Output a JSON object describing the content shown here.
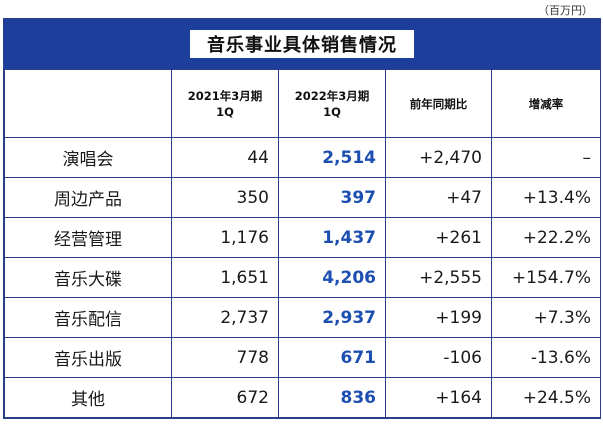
{
  "unit": "（百万円）",
  "title": "音乐事业具体销售情况",
  "headers": {
    "category": "",
    "col1_line1": "2021年3月期",
    "col1_line2": "1Q",
    "col2_line1": "2022年3月期",
    "col2_line2": "1Q",
    "col3": "前年同期比",
    "col4": "增减率"
  },
  "rows": [
    {
      "category": "演唱会",
      "fy2021": "44",
      "fy2022": "2,514",
      "yoy": "+2,470",
      "rate": "–"
    },
    {
      "category": "周边产品",
      "fy2021": "350",
      "fy2022": "397",
      "yoy": "+47",
      "rate": "+13.4%"
    },
    {
      "category": "经营管理",
      "fy2021": "1,176",
      "fy2022": "1,437",
      "yoy": "+261",
      "rate": "+22.2%"
    },
    {
      "category": "音乐大碟",
      "fy2021": "1,651",
      "fy2022": "4,206",
      "yoy": "+2,555",
      "rate": "+154.7%"
    },
    {
      "category": "音乐配信",
      "fy2021": "2,737",
      "fy2022": "2,937",
      "yoy": "+199",
      "rate": "+7.3%"
    },
    {
      "category": "音乐出版",
      "fy2021": "778",
      "fy2022": "671",
      "yoy": "-106",
      "rate": "-13.6%"
    },
    {
      "category": "其他",
      "fy2021": "672",
      "fy2022": "836",
      "yoy": "+164",
      "rate": "+24.5%"
    }
  ]
}
